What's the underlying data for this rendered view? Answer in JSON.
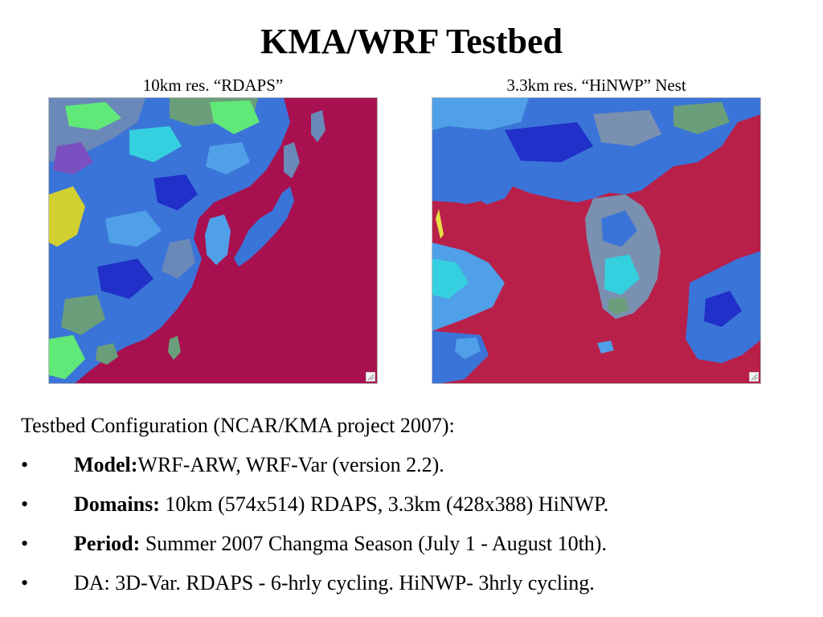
{
  "slide": {
    "title": "KMA/WRF Testbed",
    "left_caption": "10km res. “RDAPS”",
    "right_caption": "3.3km res. “HiNWP” Nest",
    "intro": "Testbed Configuration (NCAR/KMA project 2007):",
    "bullet_symbol": "•",
    "bullets": [
      {
        "label": "Model:",
        "text": "WRF-ARW, WRF-Var (version 2.2)."
      },
      {
        "label": "Domains:",
        "text": " 10km (574x514) RDAPS, 3.3km (428x388) HiNWP."
      },
      {
        "label": "Period:",
        "text": " Summer 2007 Changma Season (July 1 - August 10th)."
      },
      {
        "label": "",
        "text": "DA: 3D-Var. RDAPS - 6-hrly cycling. HiNWP- 3hrly cycling."
      }
    ]
  },
  "maps": {
    "left": {
      "ocean_color": "#a8104f",
      "land_palette": [
        "#3b74d8",
        "#4fa0e8",
        "#2030c8",
        "#6a88b8",
        "#35d0e0",
        "#6a9e7a",
        "#d0d030",
        "#7a50c0",
        "#60e878"
      ]
    },
    "right": {
      "ocean_color": "#b8204a",
      "land_palette": [
        "#3b74d8",
        "#4fa0e8",
        "#2030c8",
        "#7a90b0",
        "#35d0e0",
        "#6a9e7a",
        "#e8e040"
      ]
    }
  }
}
